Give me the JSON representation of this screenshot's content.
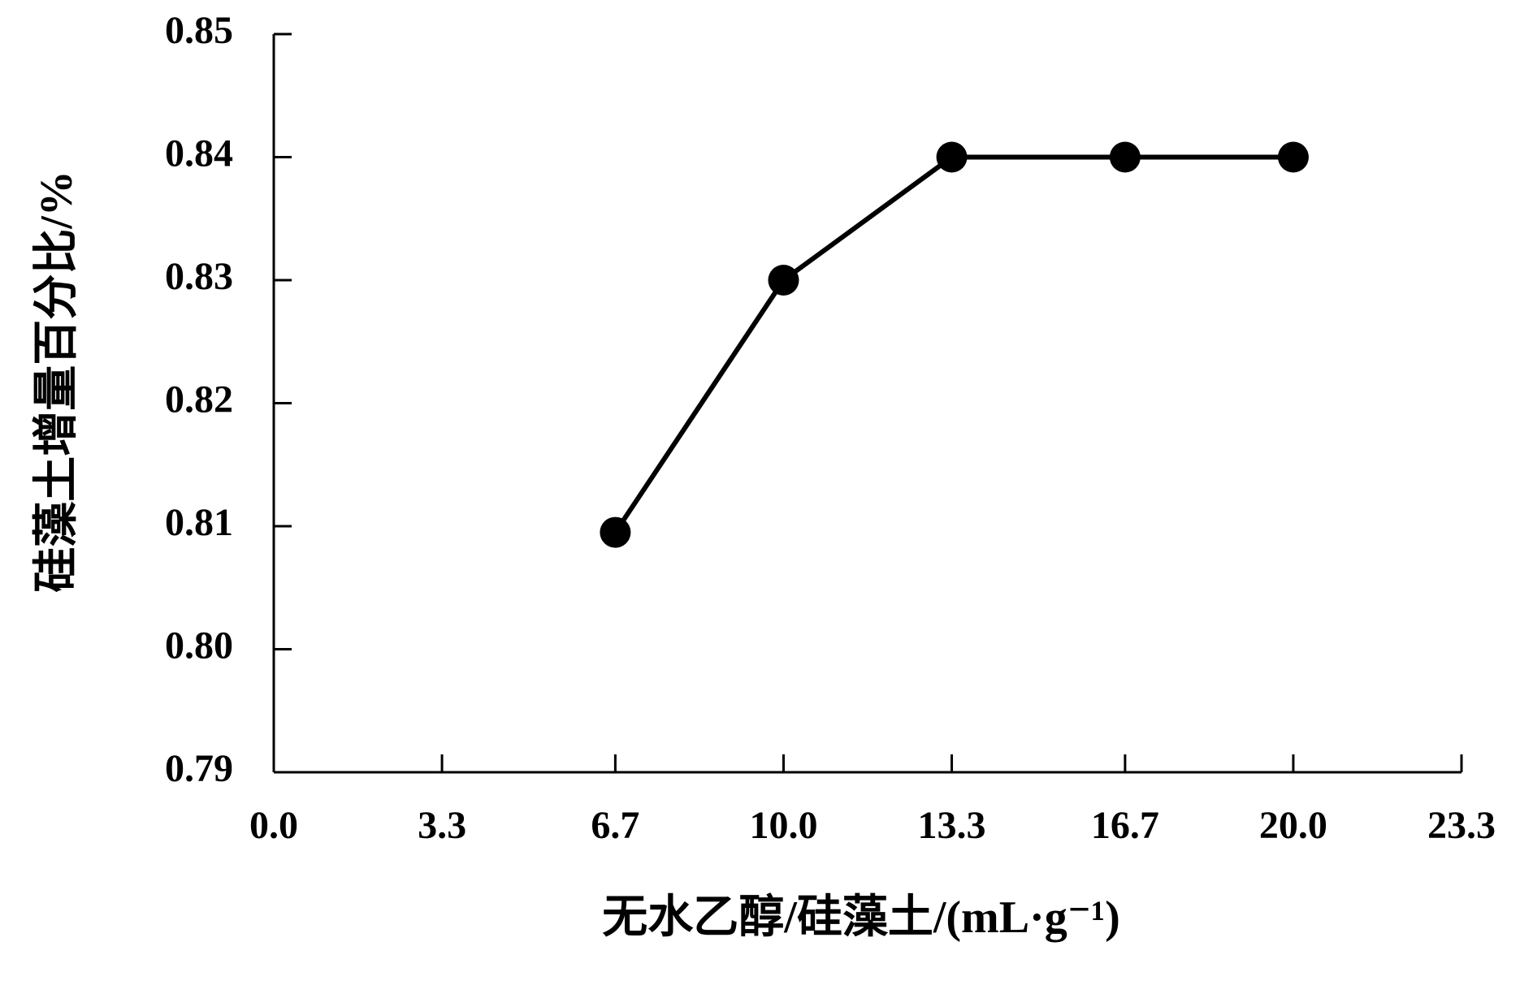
{
  "chart_data": {
    "type": "line",
    "x_label": "无水乙醇/硅藻土/(mL·g⁻¹)",
    "y_label": "硅藻土增量百分比/%",
    "x": [
      6.7,
      10,
      13.3,
      16.7,
      20
    ],
    "series": [
      {
        "color": "#000000",
        "values": [
          0.8095,
          0.83,
          0.84,
          0.84,
          0.84
        ]
      }
    ],
    "xlim": [
      0,
      23.3
    ],
    "xticks": [
      {
        "value": 0,
        "label": "0.0"
      },
      3.3,
      6.7,
      {
        "value": 10,
        "label": "10.0"
      },
      13.3,
      16.7,
      {
        "value": 20,
        "label": "20.0"
      },
      23.3
    ],
    "ylim": [
      0.79,
      0.85
    ],
    "yticks": [
      0.79,
      {
        "value": 0.8,
        "label": "0.80"
      },
      0.81,
      0.82,
      0.83,
      0.84,
      0.85
    ],
    "grid": false
  }
}
